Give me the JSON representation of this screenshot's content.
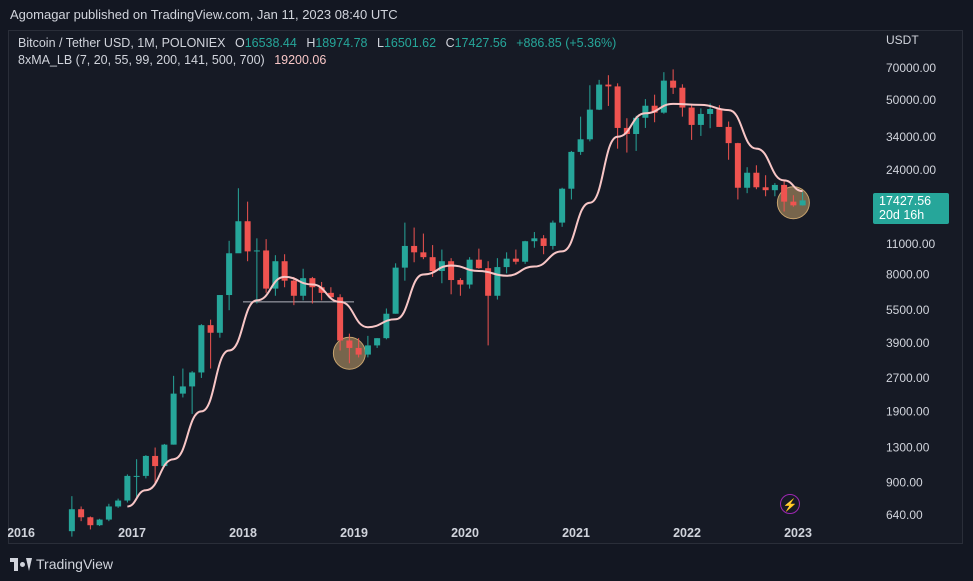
{
  "header": {
    "published": "Agomagar published on TradingView.com, Jan 11, 2023 08:40 UTC"
  },
  "legend": {
    "symbol": "Bitcoin / Tether USD, 1M, POLONIEX",
    "o_label": "O",
    "o_value": "16538.44",
    "h_label": "H",
    "h_value": "18974.78",
    "l_label": "L",
    "l_value": "16501.62",
    "c_label": "C",
    "c_value": "17427.56",
    "change": "+886.85 (+5.36%)",
    "indicator": "8xMA_LB (7, 20, 55, 99, 200, 141, 500, 700)",
    "indicator_value": "19200.06"
  },
  "price_tag": {
    "price": "17427.56",
    "countdown": "20d 16h"
  },
  "footer": {
    "brand": "TradingView"
  },
  "colors": {
    "up": "#26a69a",
    "down": "#ef5350",
    "ma": "#f8c6c6",
    "background": "#161a25",
    "text": "#d1d4dc",
    "highlight": "#c8a46e"
  },
  "icons": {
    "alert": "lightning-icon",
    "brand": "tradingview-logo-icon"
  },
  "chart_data": {
    "type": "candlestick",
    "title": "Bitcoin / Tether USD, 1M, POLONIEX",
    "y_unit": "USDT",
    "y_scale": "log",
    "ylim": [
      600,
      100000
    ],
    "y_ticks": [
      70000,
      50000,
      34000,
      24000,
      16000,
      11000,
      8000,
      5500,
      3900,
      2700,
      1900,
      1300,
      900,
      640
    ],
    "y_tick_labels": [
      "70000.00",
      "50000.00",
      "34000.00",
      "24000.00",
      "16000.00",
      "11000.00",
      "8000.00",
      "5500.00",
      "3900.00",
      "2700.00",
      "1900.00",
      "1300.00",
      "900.00",
      "640.00"
    ],
    "x_range": [
      2016.0,
      2023.5
    ],
    "x_ticks": [
      2016,
      2017,
      2018,
      2019,
      2020,
      2021,
      2022,
      2023
    ],
    "x_tick_labels": [
      "2016",
      "2017",
      "2018",
      "2019",
      "2020",
      "2021",
      "2022",
      "2023"
    ],
    "grid": false,
    "candles": [
      {
        "t": "2016-06",
        "o": 540,
        "h": 780,
        "l": 510,
        "c": 680
      },
      {
        "t": "2016-07",
        "o": 680,
        "h": 700,
        "l": 600,
        "c": 625
      },
      {
        "t": "2016-08",
        "o": 625,
        "h": 630,
        "l": 550,
        "c": 575
      },
      {
        "t": "2016-09",
        "o": 575,
        "h": 615,
        "l": 570,
        "c": 610
      },
      {
        "t": "2016-10",
        "o": 610,
        "h": 720,
        "l": 600,
        "c": 700
      },
      {
        "t": "2016-11",
        "o": 700,
        "h": 760,
        "l": 690,
        "c": 745
      },
      {
        "t": "2016-12",
        "o": 745,
        "h": 980,
        "l": 730,
        "c": 965
      },
      {
        "t": "2017-01",
        "o": 965,
        "h": 1150,
        "l": 760,
        "c": 965
      },
      {
        "t": "2017-02",
        "o": 965,
        "h": 1200,
        "l": 940,
        "c": 1190
      },
      {
        "t": "2017-03",
        "o": 1190,
        "h": 1300,
        "l": 890,
        "c": 1070
      },
      {
        "t": "2017-04",
        "o": 1070,
        "h": 1350,
        "l": 1060,
        "c": 1340
      },
      {
        "t": "2017-05",
        "o": 1340,
        "h": 2760,
        "l": 1340,
        "c": 2290
      },
      {
        "t": "2017-06",
        "o": 2290,
        "h": 2980,
        "l": 2200,
        "c": 2470
      },
      {
        "t": "2017-07",
        "o": 2470,
        "h": 2900,
        "l": 1850,
        "c": 2860
      },
      {
        "t": "2017-08",
        "o": 2860,
        "h": 4750,
        "l": 2700,
        "c": 4700
      },
      {
        "t": "2017-09",
        "o": 4700,
        "h": 4980,
        "l": 2980,
        "c": 4340
      },
      {
        "t": "2017-10",
        "o": 4340,
        "h": 6450,
        "l": 4120,
        "c": 6450
      },
      {
        "t": "2017-11",
        "o": 6450,
        "h": 11400,
        "l": 5500,
        "c": 10000
      },
      {
        "t": "2017-12",
        "o": 10000,
        "h": 19800,
        "l": 10500,
        "c": 14000
      },
      {
        "t": "2018-01",
        "o": 14000,
        "h": 17200,
        "l": 9200,
        "c": 10200
      },
      {
        "t": "2018-02",
        "o": 10200,
        "h": 11700,
        "l": 5900,
        "c": 10300
      },
      {
        "t": "2018-03",
        "o": 10300,
        "h": 11600,
        "l": 6600,
        "c": 6900
      },
      {
        "t": "2018-04",
        "o": 6900,
        "h": 9800,
        "l": 6400,
        "c": 9200
      },
      {
        "t": "2018-05",
        "o": 9200,
        "h": 9900,
        "l": 7000,
        "c": 7500
      },
      {
        "t": "2018-06",
        "o": 7500,
        "h": 7800,
        "l": 5800,
        "c": 6400
      },
      {
        "t": "2018-07",
        "o": 6400,
        "h": 8500,
        "l": 6100,
        "c": 7700
      },
      {
        "t": "2018-08",
        "o": 7700,
        "h": 7800,
        "l": 5900,
        "c": 7000
      },
      {
        "t": "2018-09",
        "o": 7000,
        "h": 7400,
        "l": 6100,
        "c": 6600
      },
      {
        "t": "2018-10",
        "o": 6600,
        "h": 7000,
        "l": 6200,
        "c": 6300
      },
      {
        "t": "2018-11",
        "o": 6300,
        "h": 6500,
        "l": 3600,
        "c": 4000
      },
      {
        "t": "2018-12",
        "o": 4000,
        "h": 4300,
        "l": 3150,
        "c": 3700
      },
      {
        "t": "2019-01",
        "o": 3700,
        "h": 4100,
        "l": 3350,
        "c": 3450
      },
      {
        "t": "2019-02",
        "o": 3450,
        "h": 4200,
        "l": 3350,
        "c": 3800
      },
      {
        "t": "2019-03",
        "o": 3800,
        "h": 4100,
        "l": 3700,
        "c": 4100
      },
      {
        "t": "2019-04",
        "o": 4100,
        "h": 5600,
        "l": 4050,
        "c": 5300
      },
      {
        "t": "2019-05",
        "o": 5300,
        "h": 9000,
        "l": 5300,
        "c": 8600
      },
      {
        "t": "2019-06",
        "o": 8600,
        "h": 13800,
        "l": 7500,
        "c": 10800
      },
      {
        "t": "2019-07",
        "o": 10800,
        "h": 13100,
        "l": 9100,
        "c": 10100
      },
      {
        "t": "2019-08",
        "o": 10100,
        "h": 12300,
        "l": 9400,
        "c": 9600
      },
      {
        "t": "2019-09",
        "o": 9600,
        "h": 10900,
        "l": 7800,
        "c": 8300
      },
      {
        "t": "2019-10",
        "o": 8300,
        "h": 10400,
        "l": 7300,
        "c": 9200
      },
      {
        "t": "2019-11",
        "o": 9200,
        "h": 9500,
        "l": 6500,
        "c": 7550
      },
      {
        "t": "2019-12",
        "o": 7550,
        "h": 7700,
        "l": 6400,
        "c": 7200
      },
      {
        "t": "2020-01",
        "o": 7200,
        "h": 9600,
        "l": 6900,
        "c": 9350
      },
      {
        "t": "2020-02",
        "o": 9350,
        "h": 10500,
        "l": 8500,
        "c": 8550
      },
      {
        "t": "2020-03",
        "o": 8550,
        "h": 9200,
        "l": 3800,
        "c": 6400
      },
      {
        "t": "2020-04",
        "o": 6400,
        "h": 9500,
        "l": 6150,
        "c": 8650
      },
      {
        "t": "2020-05",
        "o": 8650,
        "h": 10100,
        "l": 8100,
        "c": 9450
      },
      {
        "t": "2020-06",
        "o": 9450,
        "h": 10400,
        "l": 8900,
        "c": 9150
      },
      {
        "t": "2020-07",
        "o": 9150,
        "h": 11400,
        "l": 8950,
        "c": 11350
      },
      {
        "t": "2020-08",
        "o": 11350,
        "h": 12500,
        "l": 10600,
        "c": 11700
      },
      {
        "t": "2020-09",
        "o": 11700,
        "h": 12100,
        "l": 9900,
        "c": 10800
      },
      {
        "t": "2020-10",
        "o": 10800,
        "h": 14100,
        "l": 10400,
        "c": 13800
      },
      {
        "t": "2020-11",
        "o": 13800,
        "h": 19900,
        "l": 13200,
        "c": 19700
      },
      {
        "t": "2020-12",
        "o": 19700,
        "h": 29300,
        "l": 17600,
        "c": 29000
      },
      {
        "t": "2021-01",
        "o": 29000,
        "h": 42000,
        "l": 28100,
        "c": 33100
      },
      {
        "t": "2021-02",
        "o": 33100,
        "h": 58400,
        "l": 32400,
        "c": 45200
      },
      {
        "t": "2021-03",
        "o": 45200,
        "h": 61800,
        "l": 45000,
        "c": 58800
      },
      {
        "t": "2021-04",
        "o": 58800,
        "h": 64900,
        "l": 47000,
        "c": 57700
      },
      {
        "t": "2021-05",
        "o": 57700,
        "h": 59600,
        "l": 30000,
        "c": 37300
      },
      {
        "t": "2021-06",
        "o": 37300,
        "h": 41300,
        "l": 28800,
        "c": 35000
      },
      {
        "t": "2021-07",
        "o": 35000,
        "h": 42400,
        "l": 29300,
        "c": 41500
      },
      {
        "t": "2021-08",
        "o": 41500,
        "h": 50500,
        "l": 37300,
        "c": 47100
      },
      {
        "t": "2021-09",
        "o": 47100,
        "h": 52900,
        "l": 39600,
        "c": 43800
      },
      {
        "t": "2021-10",
        "o": 43800,
        "h": 67000,
        "l": 43300,
        "c": 61300
      },
      {
        "t": "2021-11",
        "o": 61300,
        "h": 69000,
        "l": 53300,
        "c": 56900
      },
      {
        "t": "2021-12",
        "o": 56900,
        "h": 59000,
        "l": 42000,
        "c": 46200
      },
      {
        "t": "2022-01",
        "o": 46200,
        "h": 47900,
        "l": 32900,
        "c": 38500
      },
      {
        "t": "2022-02",
        "o": 38500,
        "h": 45800,
        "l": 34300,
        "c": 43200
      },
      {
        "t": "2022-03",
        "o": 43200,
        "h": 48200,
        "l": 37200,
        "c": 45500
      },
      {
        "t": "2022-04",
        "o": 45500,
        "h": 47400,
        "l": 37700,
        "c": 37700
      },
      {
        "t": "2022-05",
        "o": 37700,
        "h": 39900,
        "l": 26700,
        "c": 31800
      },
      {
        "t": "2022-06",
        "o": 31800,
        "h": 31900,
        "l": 17600,
        "c": 19900
      },
      {
        "t": "2022-07",
        "o": 19900,
        "h": 24700,
        "l": 18800,
        "c": 23300
      },
      {
        "t": "2022-08",
        "o": 23300,
        "h": 25200,
        "l": 19600,
        "c": 20000
      },
      {
        "t": "2022-09",
        "o": 20000,
        "h": 22700,
        "l": 18200,
        "c": 19400
      },
      {
        "t": "2022-10",
        "o": 19400,
        "h": 20900,
        "l": 18200,
        "c": 20500
      },
      {
        "t": "2022-11",
        "o": 20500,
        "h": 21400,
        "l": 15500,
        "c": 17200
      },
      {
        "t": "2022-12",
        "o": 17200,
        "h": 18400,
        "l": 16300,
        "c": 16540
      },
      {
        "t": "2023-01",
        "o": 16538.44,
        "h": 18974.78,
        "l": 16501.62,
        "c": 17427.56
      }
    ],
    "moving_average": {
      "name": "8xMA_LB",
      "points": [
        [
          "2016-12",
          700
        ],
        [
          "2017-02",
          830
        ],
        [
          "2017-05",
          1150
        ],
        [
          "2017-08",
          1900
        ],
        [
          "2017-11",
          3600
        ],
        [
          "2018-02",
          6100
        ],
        [
          "2018-05",
          7800
        ],
        [
          "2018-08",
          7200
        ],
        [
          "2018-11",
          6000
        ],
        [
          "2019-02",
          4600
        ],
        [
          "2019-05",
          5000
        ],
        [
          "2019-08",
          8000
        ],
        [
          "2019-11",
          8800
        ],
        [
          "2020-02",
          8300
        ],
        [
          "2020-05",
          7900
        ],
        [
          "2020-08",
          8700
        ],
        [
          "2020-11",
          10200
        ],
        [
          "2021-02",
          17000
        ],
        [
          "2021-05",
          34000
        ],
        [
          "2021-08",
          43500
        ],
        [
          "2021-11",
          48000
        ],
        [
          "2022-02",
          47500
        ],
        [
          "2022-05",
          45000
        ],
        [
          "2022-08",
          30000
        ],
        [
          "2022-11",
          21500
        ],
        [
          "2023-01",
          19200.06
        ]
      ]
    },
    "annotations": [
      {
        "type": "horizontal-line",
        "from": "2018-01",
        "to": "2019-01",
        "y": 6000
      },
      {
        "type": "circle",
        "x": "2018-12",
        "y": 3500
      },
      {
        "type": "circle",
        "x": "2022-12",
        "y": 17000
      }
    ]
  }
}
